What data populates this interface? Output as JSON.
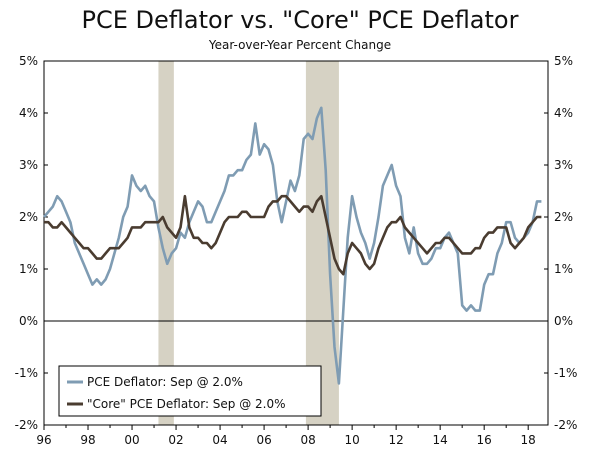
{
  "chart_data": {
    "type": "line",
    "title": "PCE Deflator vs. \"Core\" PCE Deflator",
    "subtitle": "Year-over-Year Percent Change",
    "xlabel": "",
    "ylabel": "",
    "xlim": [
      1996,
      2018.9
    ],
    "ylim": [
      -2,
      5
    ],
    "x_tick_labels": [
      "96",
      "98",
      "00",
      "02",
      "04",
      "06",
      "08",
      "10",
      "12",
      "14",
      "16",
      "18"
    ],
    "x_tick_values": [
      1996,
      1998,
      2000,
      2002,
      2004,
      2006,
      2008,
      2010,
      2012,
      2014,
      2016,
      2018
    ],
    "y_tick_values": [
      -2,
      -1,
      0,
      1,
      2,
      3,
      4,
      5
    ],
    "y_tick_labels": [
      "-2%",
      "-1%",
      "0%",
      "1%",
      "2%",
      "3%",
      "4%",
      "5%"
    ],
    "recessions": [
      [
        2001.2,
        2001.9
      ],
      [
        2007.9,
        2009.4
      ]
    ],
    "legend_position": "bottom-left",
    "colors": {
      "headline": "#7f9cb3",
      "core": "#4a3c30",
      "recession": "#d6d2c4",
      "zero_line": "#000000"
    },
    "series": [
      {
        "name": "PCE Deflator: Sep @ 2.0%",
        "x": [
          1996.0,
          1996.2,
          1996.4,
          1996.6,
          1996.8,
          1997.0,
          1997.2,
          1997.4,
          1997.6,
          1997.8,
          1998.0,
          1998.2,
          1998.4,
          1998.6,
          1998.8,
          1999.0,
          1999.2,
          1999.4,
          1999.6,
          1999.8,
          2000.0,
          2000.2,
          2000.4,
          2000.6,
          2000.8,
          2001.0,
          2001.2,
          2001.4,
          2001.6,
          2001.8,
          2002.0,
          2002.2,
          2002.4,
          2002.6,
          2002.8,
          2003.0,
          2003.2,
          2003.4,
          2003.6,
          2003.8,
          2004.0,
          2004.2,
          2004.4,
          2004.6,
          2004.8,
          2005.0,
          2005.2,
          2005.4,
          2005.6,
          2005.8,
          2006.0,
          2006.2,
          2006.4,
          2006.6,
          2006.8,
          2007.0,
          2007.2,
          2007.4,
          2007.6,
          2007.8,
          2008.0,
          2008.2,
          2008.4,
          2008.6,
          2008.8,
          2009.0,
          2009.2,
          2009.4,
          2009.6,
          2009.8,
          2010.0,
          2010.2,
          2010.4,
          2010.6,
          2010.8,
          2011.0,
          2011.2,
          2011.4,
          2011.6,
          2011.8,
          2012.0,
          2012.2,
          2012.4,
          2012.6,
          2012.8,
          2013.0,
          2013.2,
          2013.4,
          2013.6,
          2013.8,
          2014.0,
          2014.2,
          2014.4,
          2014.6,
          2014.8,
          2015.0,
          2015.2,
          2015.4,
          2015.6,
          2015.8,
          2016.0,
          2016.2,
          2016.4,
          2016.6,
          2016.8,
          2017.0,
          2017.2,
          2017.4,
          2017.6,
          2017.8,
          2018.0,
          2018.2,
          2018.4,
          2018.6
        ],
        "y": [
          2.0,
          2.1,
          2.2,
          2.4,
          2.3,
          2.1,
          1.9,
          1.5,
          1.3,
          1.1,
          0.9,
          0.7,
          0.8,
          0.7,
          0.8,
          1.0,
          1.3,
          1.6,
          2.0,
          2.2,
          2.8,
          2.6,
          2.5,
          2.6,
          2.4,
          2.3,
          1.8,
          1.4,
          1.1,
          1.3,
          1.4,
          1.7,
          1.6,
          1.9,
          2.1,
          2.3,
          2.2,
          1.9,
          1.9,
          2.1,
          2.3,
          2.5,
          2.8,
          2.8,
          2.9,
          2.9,
          3.1,
          3.2,
          3.8,
          3.2,
          3.4,
          3.3,
          3.0,
          2.3,
          1.9,
          2.3,
          2.7,
          2.5,
          2.8,
          3.5,
          3.6,
          3.5,
          3.9,
          4.1,
          2.9,
          0.9,
          -0.5,
          -1.2,
          0.2,
          1.6,
          2.4,
          2.0,
          1.7,
          1.5,
          1.2,
          1.5,
          2.0,
          2.6,
          2.8,
          3.0,
          2.6,
          2.4,
          1.6,
          1.3,
          1.8,
          1.3,
          1.1,
          1.1,
          1.2,
          1.4,
          1.4,
          1.6,
          1.7,
          1.5,
          1.3,
          0.3,
          0.2,
          0.3,
          0.2,
          0.2,
          0.7,
          0.9,
          0.9,
          1.3,
          1.5,
          1.9,
          1.9,
          1.6,
          1.5,
          1.6,
          1.7,
          1.9,
          2.3,
          2.3
        ],
        "color": "#7f9cb3"
      },
      {
        "name": "\"Core\" PCE Deflator: Sep @ 2.0%",
        "x": [
          1996.0,
          1996.2,
          1996.4,
          1996.6,
          1996.8,
          1997.0,
          1997.2,
          1997.4,
          1997.6,
          1997.8,
          1998.0,
          1998.2,
          1998.4,
          1998.6,
          1998.8,
          1999.0,
          1999.2,
          1999.4,
          1999.6,
          1999.8,
          2000.0,
          2000.2,
          2000.4,
          2000.6,
          2000.8,
          2001.0,
          2001.2,
          2001.4,
          2001.6,
          2001.8,
          2002.0,
          2002.2,
          2002.4,
          2002.6,
          2002.8,
          2003.0,
          2003.2,
          2003.4,
          2003.6,
          2003.8,
          2004.0,
          2004.2,
          2004.4,
          2004.6,
          2004.8,
          2005.0,
          2005.2,
          2005.4,
          2005.6,
          2005.8,
          2006.0,
          2006.2,
          2006.4,
          2006.6,
          2006.8,
          2007.0,
          2007.2,
          2007.4,
          2007.6,
          2007.8,
          2008.0,
          2008.2,
          2008.4,
          2008.6,
          2008.8,
          2009.0,
          2009.2,
          2009.4,
          2009.6,
          2009.8,
          2010.0,
          2010.2,
          2010.4,
          2010.6,
          2010.8,
          2011.0,
          2011.2,
          2011.4,
          2011.6,
          2011.8,
          2012.0,
          2012.2,
          2012.4,
          2012.6,
          2012.8,
          2013.0,
          2013.2,
          2013.4,
          2013.6,
          2013.8,
          2014.0,
          2014.2,
          2014.4,
          2014.6,
          2014.8,
          2015.0,
          2015.2,
          2015.4,
          2015.6,
          2015.8,
          2016.0,
          2016.2,
          2016.4,
          2016.6,
          2016.8,
          2017.0,
          2017.2,
          2017.4,
          2017.6,
          2017.8,
          2018.0,
          2018.2,
          2018.4,
          2018.6
        ],
        "y": [
          1.9,
          1.9,
          1.8,
          1.8,
          1.9,
          1.8,
          1.7,
          1.6,
          1.5,
          1.4,
          1.4,
          1.3,
          1.2,
          1.2,
          1.3,
          1.4,
          1.4,
          1.4,
          1.5,
          1.6,
          1.8,
          1.8,
          1.8,
          1.9,
          1.9,
          1.9,
          1.9,
          2.0,
          1.8,
          1.7,
          1.6,
          1.8,
          2.4,
          1.8,
          1.6,
          1.6,
          1.5,
          1.5,
          1.4,
          1.5,
          1.7,
          1.9,
          2.0,
          2.0,
          2.0,
          2.1,
          2.1,
          2.0,
          2.0,
          2.0,
          2.0,
          2.2,
          2.3,
          2.3,
          2.4,
          2.4,
          2.3,
          2.2,
          2.1,
          2.2,
          2.2,
          2.1,
          2.3,
          2.4,
          2.0,
          1.6,
          1.2,
          1.0,
          0.9,
          1.3,
          1.5,
          1.4,
          1.3,
          1.1,
          1.0,
          1.1,
          1.4,
          1.6,
          1.8,
          1.9,
          1.9,
          2.0,
          1.8,
          1.7,
          1.6,
          1.5,
          1.4,
          1.3,
          1.4,
          1.5,
          1.5,
          1.6,
          1.6,
          1.5,
          1.4,
          1.3,
          1.3,
          1.3,
          1.4,
          1.4,
          1.6,
          1.7,
          1.7,
          1.8,
          1.8,
          1.8,
          1.5,
          1.4,
          1.5,
          1.6,
          1.8,
          1.9,
          2.0,
          2.0
        ],
        "color": "#4a3c30"
      }
    ]
  }
}
